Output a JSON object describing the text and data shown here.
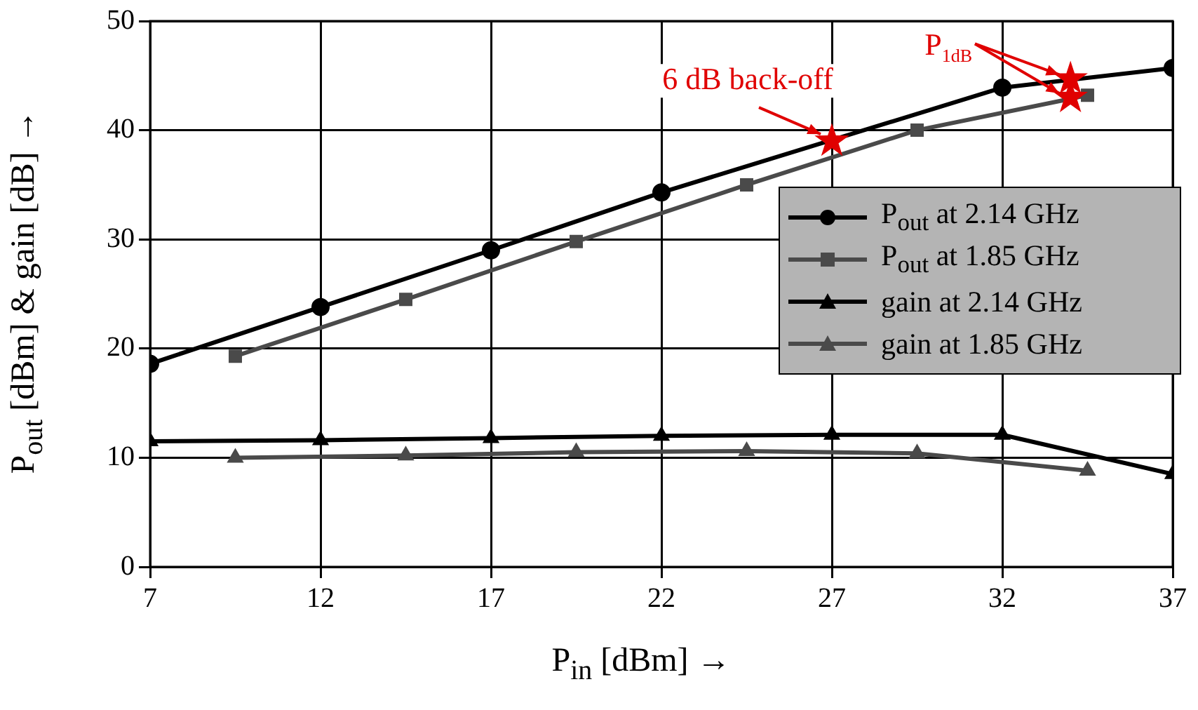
{
  "chart_data": {
    "type": "line",
    "xlabel": "P$_{in}$ [dBm] →",
    "ylabel": "P$_{out}$ [dBm] & gain [dB] →",
    "xlim": [
      7,
      37
    ],
    "xticks": [
      7,
      12,
      17,
      22,
      27,
      32,
      37
    ],
    "ylim": [
      0,
      50
    ],
    "yticks": [
      0,
      10,
      20,
      30,
      40,
      50
    ],
    "grid": true,
    "legend": "right",
    "series": [
      {
        "name": "P$_{out}$ at 2.14 GHz",
        "color": "#000000",
        "marker": "circle",
        "x": [
          7,
          12,
          17,
          22,
          32,
          37
        ],
        "values": [
          18.6,
          23.8,
          29.0,
          34.3,
          43.9,
          45.7
        ]
      },
      {
        "name": "P$_{out}$ at 1.85 GHz",
        "color": "#4a4a4a",
        "marker": "square",
        "x": [
          9.5,
          14.5,
          19.5,
          24.5,
          29.5,
          34.5
        ],
        "values": [
          19.3,
          24.5,
          29.8,
          35.0,
          40.0,
          43.2
        ]
      },
      {
        "name": "gain at 2.14 GHz",
        "color": "#000000",
        "marker": "triangle",
        "x": [
          7,
          12,
          17,
          22,
          27,
          32,
          37
        ],
        "values": [
          11.5,
          11.6,
          11.8,
          12.0,
          12.1,
          12.1,
          8.5
        ]
      },
      {
        "name": "gain at 1.85 GHz",
        "color": "#4a4a4a",
        "marker": "triangle",
        "x": [
          9.5,
          14.5,
          19.5,
          24.5,
          29.5,
          34.5
        ],
        "values": [
          10.0,
          10.2,
          10.5,
          10.6,
          10.4,
          8.8
        ]
      },
      {
        "type": "scatter",
        "color": "#e00000",
        "marker": "star",
        "x": [
          27,
          34,
          34
        ],
        "values": [
          39.0,
          44.7,
          43.0
        ]
      }
    ],
    "annotations": [
      {
        "text": "6 dB back-off",
        "x": 27,
        "y": 39.0
      },
      {
        "text": "P$_{1dB}$",
        "x": 34,
        "y": 44.7
      }
    ]
  }
}
